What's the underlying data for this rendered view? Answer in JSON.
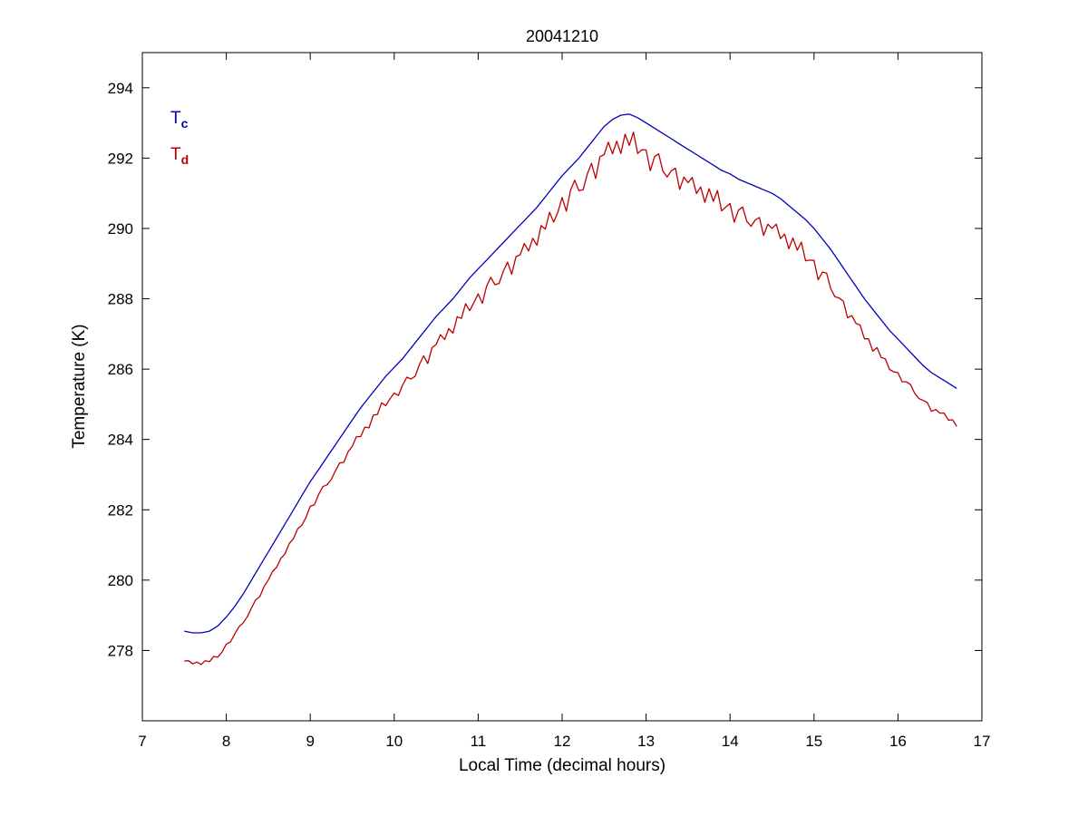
{
  "chart_data": {
    "type": "line",
    "title": "20041210",
    "xlabel": "Local Time (decimal hours)",
    "ylabel": "Temperature (K)",
    "xlim": [
      7,
      17
    ],
    "ylim": [
      276,
      295
    ],
    "xticks": [
      7,
      8,
      9,
      10,
      11,
      12,
      13,
      14,
      15,
      16,
      17
    ],
    "yticks": [
      278,
      280,
      282,
      284,
      286,
      288,
      290,
      292,
      294
    ],
    "grid": false,
    "background": "#ffffff",
    "axis_color": "#000000",
    "legend_position": "top-left-inside",
    "annotations": [
      {
        "text": "T",
        "sub": "c",
        "color": "#0000bb",
        "x": 7.33,
        "y": 293.1
      },
      {
        "text": "T",
        "sub": "d",
        "color": "#bb0000",
        "x": 7.33,
        "y": 292.05
      }
    ],
    "series": [
      {
        "name": "T_c",
        "color": "#0000bb",
        "x0": 7.5,
        "dx": 0.1,
        "y": [
          278.55,
          278.5,
          278.5,
          278.55,
          278.7,
          278.95,
          279.25,
          279.6,
          280.0,
          280.4,
          280.8,
          281.2,
          281.6,
          282.0,
          282.4,
          282.8,
          283.15,
          283.5,
          283.85,
          284.2,
          284.55,
          284.9,
          285.2,
          285.5,
          285.8,
          286.05,
          286.3,
          286.6,
          286.9,
          287.2,
          287.5,
          287.75,
          288.0,
          288.3,
          288.6,
          288.85,
          289.1,
          289.35,
          289.6,
          289.85,
          290.1,
          290.35,
          290.6,
          290.9,
          291.2,
          291.5,
          291.75,
          292.0,
          292.3,
          292.6,
          292.9,
          293.1,
          293.22,
          293.25,
          293.15,
          293.0,
          292.85,
          292.7,
          292.55,
          292.4,
          292.25,
          292.1,
          291.95,
          291.8,
          291.65,
          291.55,
          291.4,
          291.3,
          291.2,
          291.1,
          291.0,
          290.85,
          290.65,
          290.45,
          290.25,
          290.0,
          289.7,
          289.4,
          289.05,
          288.7,
          288.35,
          288.0,
          287.7,
          287.4,
          287.1,
          286.85,
          286.6,
          286.35,
          286.1,
          285.9,
          285.75,
          285.6,
          285.45
        ]
      },
      {
        "name": "T_d",
        "color": "#bb0000",
        "x0": 7.5,
        "dx": 0.05,
        "y": [
          277.7,
          277.71,
          277.62,
          277.67,
          277.6,
          277.71,
          277.68,
          277.83,
          277.81,
          277.96,
          278.18,
          278.24,
          278.47,
          278.67,
          278.78,
          278.96,
          279.21,
          279.44,
          279.53,
          279.82,
          280.0,
          280.24,
          280.37,
          280.62,
          280.75,
          281.04,
          281.18,
          281.46,
          281.56,
          281.79,
          282.1,
          282.14,
          282.44,
          282.66,
          282.71,
          282.86,
          283.11,
          283.33,
          283.35,
          283.65,
          283.8,
          284.08,
          284.08,
          284.35,
          284.33,
          284.69,
          284.71,
          285.04,
          284.96,
          285.16,
          285.32,
          285.25,
          285.55,
          285.77,
          285.72,
          285.8,
          286.13,
          286.38,
          286.16,
          286.61,
          286.7,
          286.98,
          286.84,
          287.15,
          287.02,
          287.49,
          287.44,
          287.86,
          287.66,
          287.9,
          288.14,
          287.87,
          288.36,
          288.61,
          288.4,
          288.44,
          288.79,
          289.04,
          288.7,
          289.2,
          289.25,
          289.57,
          289.36,
          289.72,
          289.52,
          290.08,
          289.98,
          290.46,
          290.18,
          290.47,
          290.88,
          290.49,
          291.09,
          291.37,
          291.07,
          291.1,
          291.55,
          291.85,
          291.42,
          292.04,
          292.1,
          292.45,
          292.12,
          292.48,
          292.13,
          292.68,
          292.36,
          292.74,
          292.13,
          292.24,
          292.23,
          291.64,
          292.04,
          292.12,
          291.63,
          291.46,
          291.64,
          291.71,
          291.11,
          291.46,
          291.3,
          291.45,
          290.99,
          291.18,
          290.74,
          291.13,
          290.77,
          291.08,
          290.5,
          290.61,
          290.71,
          290.18,
          290.52,
          290.61,
          290.2,
          290.06,
          290.24,
          290.31,
          289.8,
          290.12,
          290.0,
          290.12,
          289.71,
          289.84,
          289.42,
          289.73,
          289.38,
          289.61,
          289.08,
          289.1,
          289.09,
          288.54,
          288.76,
          288.73,
          288.28,
          288.06,
          288.02,
          287.93,
          287.46,
          287.52,
          287.3,
          287.25,
          286.86,
          286.86,
          286.51,
          286.61,
          286.33,
          286.29,
          285.99,
          285.92,
          285.9,
          285.64,
          285.64,
          285.56,
          285.31,
          285.16,
          285.11,
          285.05,
          284.8,
          284.85,
          284.75,
          284.75,
          284.55,
          284.56,
          284.37
        ]
      }
    ]
  }
}
